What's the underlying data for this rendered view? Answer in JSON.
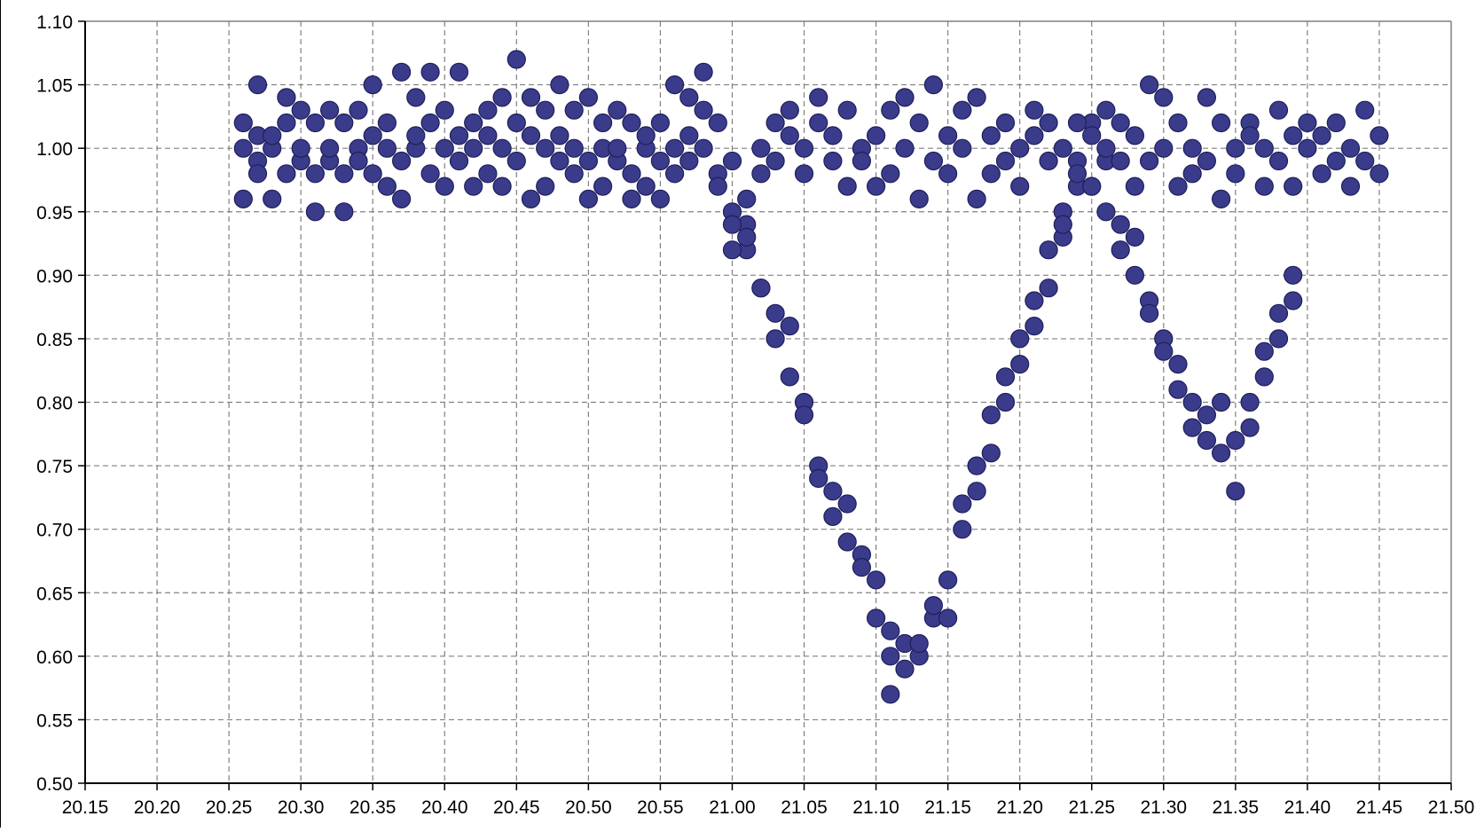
{
  "chart_data": {
    "type": "scatter",
    "title": "",
    "xlabel": "",
    "ylabel": "",
    "xlim": [
      20.15,
      21.5
    ],
    "ylim": [
      0.5,
      1.1
    ],
    "x_ticks": [
      "20.15",
      "20.20",
      "20.25",
      "20.30",
      "20.35",
      "20.40",
      "20.45",
      "20.50",
      "20.55",
      "21.00",
      "21.05",
      "21.10",
      "21.15",
      "21.20",
      "21.25",
      "21.30",
      "21.35",
      "21.40",
      "21.45",
      "21.50"
    ],
    "y_ticks": [
      "0.50",
      "0.55",
      "0.60",
      "0.65",
      "0.70",
      "0.75",
      "0.80",
      "0.85",
      "0.90",
      "0.95",
      "1.00",
      "1.05",
      "1.10"
    ],
    "grid": true,
    "marker_color": "#3b3b8c",
    "marker_edge_color": "#1e1e5a",
    "x_time_note": "x axis is clock time hh.mm; ticks jump from 20.55 to 21.00",
    "series": [
      {
        "points": [
          [
            20.26,
            1.0
          ],
          [
            20.26,
            1.02
          ],
          [
            20.26,
            0.96
          ],
          [
            20.27,
            0.99
          ],
          [
            20.27,
            1.01
          ],
          [
            20.27,
            1.05
          ],
          [
            20.27,
            0.98
          ],
          [
            20.28,
            0.96
          ],
          [
            20.28,
            1.0
          ],
          [
            20.28,
            1.01
          ],
          [
            20.29,
            1.04
          ],
          [
            20.29,
            0.98
          ],
          [
            20.29,
            1.02
          ],
          [
            20.3,
            1.03
          ],
          [
            20.3,
            0.99
          ],
          [
            20.3,
            1.0
          ],
          [
            20.31,
            0.95
          ],
          [
            20.31,
            1.02
          ],
          [
            20.31,
            0.98
          ],
          [
            20.32,
            1.03
          ],
          [
            20.32,
            0.99
          ],
          [
            20.32,
            1.0
          ],
          [
            20.33,
            0.95
          ],
          [
            20.33,
            1.02
          ],
          [
            20.33,
            0.98
          ],
          [
            20.34,
            1.0
          ],
          [
            20.34,
            0.99
          ],
          [
            20.34,
            1.03
          ],
          [
            20.35,
            1.01
          ],
          [
            20.35,
            0.98
          ],
          [
            20.35,
            1.05
          ],
          [
            20.36,
            1.0
          ],
          [
            20.36,
            0.97
          ],
          [
            20.36,
            1.02
          ],
          [
            20.37,
            0.99
          ],
          [
            20.37,
            1.06
          ],
          [
            20.37,
            0.96
          ],
          [
            20.38,
            1.0
          ],
          [
            20.38,
            1.04
          ],
          [
            20.38,
            1.01
          ],
          [
            20.39,
            0.98
          ],
          [
            20.39,
            1.06
          ],
          [
            20.39,
            1.02
          ],
          [
            20.4,
            1.0
          ],
          [
            20.4,
            0.97
          ],
          [
            20.4,
            1.03
          ],
          [
            20.41,
            1.06
          ],
          [
            20.41,
            0.99
          ],
          [
            20.41,
            1.01
          ],
          [
            20.42,
            0.97
          ],
          [
            20.42,
            1.02
          ],
          [
            20.42,
            1.0
          ],
          [
            20.43,
            0.98
          ],
          [
            20.43,
            1.03
          ],
          [
            20.43,
            1.01
          ],
          [
            20.44,
            1.04
          ],
          [
            20.44,
            0.97
          ],
          [
            20.44,
            1.0
          ],
          [
            20.45,
            1.07
          ],
          [
            20.45,
            1.02
          ],
          [
            20.45,
            0.99
          ],
          [
            20.46,
            1.04
          ],
          [
            20.46,
            0.96
          ],
          [
            20.46,
            1.01
          ],
          [
            20.47,
            1.0
          ],
          [
            20.47,
            0.97
          ],
          [
            20.47,
            1.03
          ],
          [
            20.48,
            1.05
          ],
          [
            20.48,
            0.99
          ],
          [
            20.48,
            1.01
          ],
          [
            20.49,
            0.98
          ],
          [
            20.49,
            1.03
          ],
          [
            20.49,
            1.0
          ],
          [
            20.5,
            0.96
          ],
          [
            20.5,
            1.04
          ],
          [
            20.5,
            0.99
          ],
          [
            20.51,
            1.0
          ],
          [
            20.51,
            0.97
          ],
          [
            20.51,
            1.02
          ],
          [
            20.52,
            1.03
          ],
          [
            20.52,
            0.99
          ],
          [
            20.52,
            1.0
          ],
          [
            20.53,
            0.98
          ],
          [
            20.53,
            1.02
          ],
          [
            20.53,
            0.96
          ],
          [
            20.54,
            1.0
          ],
          [
            20.54,
            0.97
          ],
          [
            20.54,
            1.01
          ],
          [
            20.55,
            0.99
          ],
          [
            20.55,
            1.02
          ],
          [
            20.55,
            0.96
          ],
          [
            20.56,
            1.05
          ],
          [
            20.56,
            0.98
          ],
          [
            20.56,
            1.0
          ],
          [
            20.57,
            1.01
          ],
          [
            20.57,
            1.04
          ],
          [
            20.57,
            0.99
          ],
          [
            20.58,
            1.03
          ],
          [
            20.58,
            1.06
          ],
          [
            20.58,
            1.0
          ],
          [
            20.59,
            0.98
          ],
          [
            20.59,
            1.02
          ],
          [
            20.59,
            0.97
          ],
          [
            20.6,
            0.99
          ],
          [
            20.6,
            0.95
          ],
          [
            20.61,
            0.92
          ],
          [
            20.61,
            0.94
          ],
          [
            20.62,
            0.89
          ],
          [
            20.62,
            0.89
          ],
          [
            20.63,
            0.87
          ],
          [
            20.63,
            0.85
          ],
          [
            20.64,
            0.86
          ],
          [
            20.64,
            0.82
          ],
          [
            20.65,
            0.8
          ],
          [
            20.65,
            0.79
          ],
          [
            20.66,
            0.75
          ],
          [
            20.66,
            0.74
          ],
          [
            20.67,
            0.73
          ],
          [
            20.67,
            0.71
          ],
          [
            20.68,
            0.72
          ],
          [
            20.68,
            0.69
          ],
          [
            20.69,
            0.68
          ],
          [
            20.69,
            0.67
          ],
          [
            20.7,
            0.66
          ],
          [
            20.7,
            0.63
          ],
          [
            20.71,
            0.62
          ],
          [
            20.71,
            0.6
          ],
          [
            20.71,
            0.57
          ],
          [
            20.72,
            0.59
          ],
          [
            20.72,
            0.61
          ],
          [
            20.73,
            0.6
          ],
          [
            20.73,
            0.61
          ],
          [
            20.74,
            0.63
          ],
          [
            20.74,
            0.64
          ],
          [
            20.75,
            0.66
          ],
          [
            20.75,
            0.63
          ],
          [
            20.76,
            0.7
          ],
          [
            20.76,
            0.72
          ],
          [
            20.77,
            0.73
          ],
          [
            20.77,
            0.75
          ],
          [
            20.78,
            0.76
          ],
          [
            20.78,
            0.79
          ],
          [
            20.79,
            0.8
          ],
          [
            20.79,
            0.82
          ],
          [
            20.8,
            0.83
          ],
          [
            20.8,
            0.85
          ],
          [
            20.81,
            0.86
          ],
          [
            20.81,
            0.88
          ],
          [
            20.82,
            0.89
          ],
          [
            20.82,
            0.92
          ],
          [
            20.83,
            0.93
          ],
          [
            20.83,
            0.95
          ],
          [
            20.84,
            0.97
          ],
          [
            20.84,
            0.99
          ],
          [
            20.85,
            1.02
          ],
          [
            20.85,
            0.97
          ],
          [
            20.86,
            0.99
          ],
          [
            20.86,
            0.95
          ],
          [
            20.87,
            0.94
          ],
          [
            20.87,
            0.92
          ],
          [
            20.88,
            0.93
          ],
          [
            20.88,
            0.9
          ],
          [
            20.89,
            0.88
          ],
          [
            20.89,
            0.87
          ],
          [
            20.9,
            0.85
          ],
          [
            20.9,
            0.84
          ],
          [
            20.91,
            0.83
          ],
          [
            20.91,
            0.81
          ],
          [
            20.92,
            0.8
          ],
          [
            20.92,
            0.78
          ],
          [
            20.93,
            0.77
          ],
          [
            20.93,
            0.79
          ],
          [
            20.94,
            0.8
          ],
          [
            20.94,
            0.76
          ],
          [
            20.95,
            0.77
          ],
          [
            20.95,
            0.73
          ],
          [
            20.96,
            0.78
          ],
          [
            20.96,
            0.8
          ],
          [
            20.97,
            0.82
          ],
          [
            20.97,
            0.84
          ],
          [
            20.98,
            0.85
          ],
          [
            20.98,
            0.87
          ],
          [
            20.99,
            0.88
          ],
          [
            20.99,
            0.9
          ],
          [
            21.0,
            0.92
          ],
          [
            21.0,
            0.94
          ],
          [
            21.01,
            0.93
          ],
          [
            21.01,
            0.96
          ],
          [
            21.02,
            0.98
          ],
          [
            21.02,
            1.0
          ],
          [
            21.03,
            1.02
          ],
          [
            21.03,
            0.99
          ],
          [
            21.04,
            1.01
          ],
          [
            21.04,
            1.03
          ],
          [
            21.05,
            1.0
          ],
          [
            21.05,
            0.98
          ],
          [
            21.06,
            1.04
          ],
          [
            21.06,
            1.02
          ],
          [
            21.07,
            0.99
          ],
          [
            21.07,
            1.01
          ],
          [
            21.08,
            0.97
          ],
          [
            21.08,
            1.03
          ],
          [
            21.09,
            1.0
          ],
          [
            21.09,
            0.99
          ],
          [
            21.1,
            1.01
          ],
          [
            21.1,
            0.97
          ],
          [
            21.11,
            1.03
          ],
          [
            21.11,
            0.98
          ],
          [
            21.12,
            1.0
          ],
          [
            21.12,
            1.04
          ],
          [
            21.13,
            0.96
          ],
          [
            21.13,
            1.02
          ],
          [
            21.14,
            0.99
          ],
          [
            21.14,
            1.05
          ],
          [
            21.15,
            1.01
          ],
          [
            21.15,
            0.98
          ],
          [
            21.16,
            1.03
          ],
          [
            21.16,
            1.0
          ],
          [
            21.17,
            0.96
          ],
          [
            21.17,
            1.04
          ],
          [
            21.18,
            1.01
          ],
          [
            21.18,
            0.98
          ],
          [
            21.19,
            1.02
          ],
          [
            21.19,
            0.99
          ],
          [
            21.2,
            1.0
          ],
          [
            21.2,
            0.97
          ],
          [
            21.21,
            1.03
          ],
          [
            21.21,
            1.01
          ],
          [
            21.22,
            0.99
          ],
          [
            21.22,
            1.02
          ],
          [
            21.23,
            0.94
          ],
          [
            21.23,
            1.0
          ],
          [
            21.24,
            0.98
          ],
          [
            21.24,
            1.02
          ],
          [
            21.25,
            1.01
          ],
          [
            21.25,
            0.97
          ],
          [
            21.26,
            1.0
          ],
          [
            21.26,
            1.03
          ],
          [
            21.27,
            0.99
          ],
          [
            21.27,
            1.02
          ],
          [
            21.28,
            1.01
          ],
          [
            21.28,
            0.97
          ],
          [
            21.29,
            1.05
          ],
          [
            21.29,
            0.99
          ],
          [
            21.3,
            1.04
          ],
          [
            21.3,
            1.0
          ],
          [
            21.31,
            0.97
          ],
          [
            21.31,
            1.02
          ],
          [
            21.32,
            0.98
          ],
          [
            21.32,
            1.0
          ],
          [
            21.33,
            1.04
          ],
          [
            21.33,
            0.99
          ],
          [
            21.34,
            1.02
          ],
          [
            21.34,
            0.96
          ],
          [
            21.35,
            1.0
          ],
          [
            21.35,
            0.98
          ],
          [
            21.36,
            1.02
          ],
          [
            21.36,
            1.01
          ],
          [
            21.37,
            0.97
          ],
          [
            21.37,
            1.0
          ],
          [
            21.38,
            1.03
          ],
          [
            21.38,
            0.99
          ],
          [
            21.39,
            1.01
          ],
          [
            21.39,
            0.97
          ],
          [
            21.4,
            1.0
          ],
          [
            21.4,
            1.02
          ],
          [
            21.41,
            0.98
          ],
          [
            21.41,
            1.01
          ],
          [
            21.42,
            0.99
          ],
          [
            21.42,
            1.02
          ],
          [
            21.43,
            0.97
          ],
          [
            21.43,
            1.0
          ],
          [
            21.44,
            1.03
          ],
          [
            21.44,
            0.99
          ],
          [
            21.45,
            1.01
          ],
          [
            21.45,
            0.98
          ]
        ]
      }
    ]
  }
}
